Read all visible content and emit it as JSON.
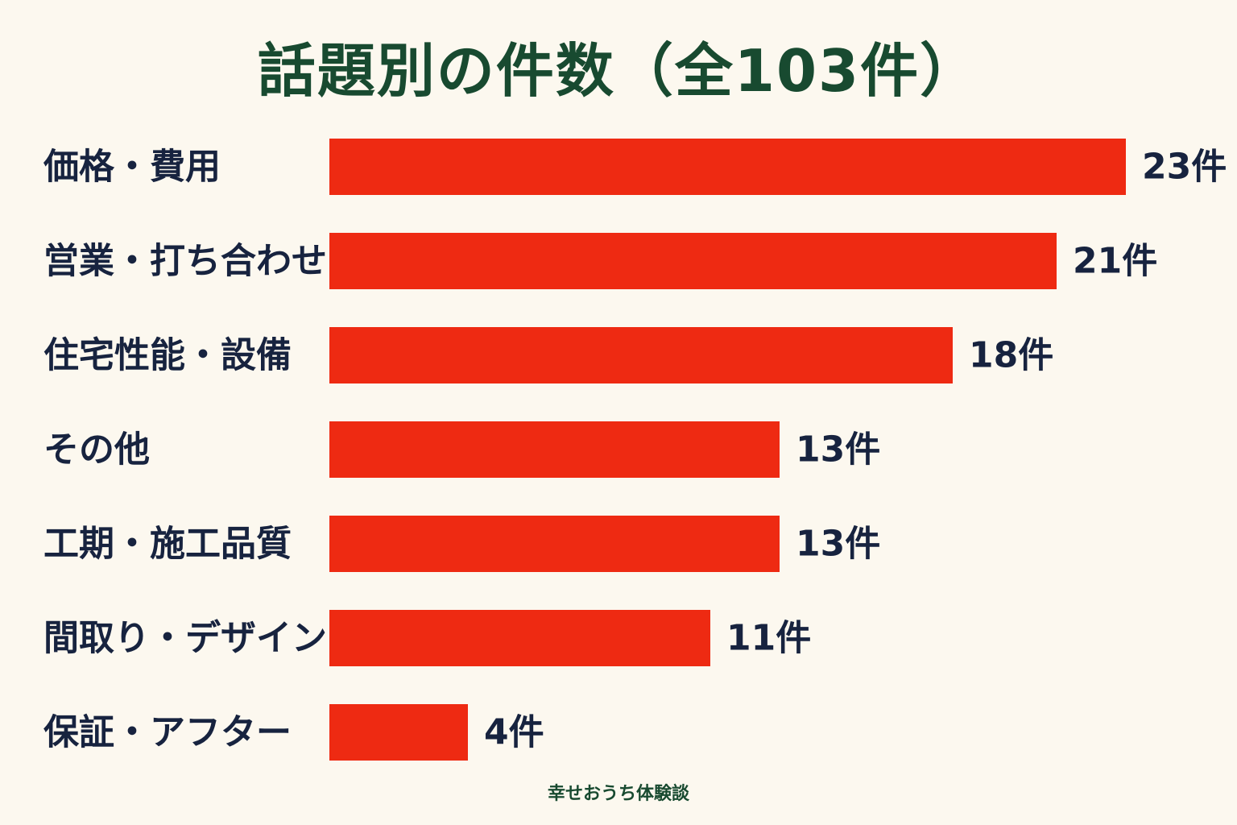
{
  "chart_data": {
    "type": "bar",
    "orientation": "horizontal",
    "title": "話題別の件数（全103件）",
    "categories": [
      "価格・費用",
      "営業・打ち合わせ",
      "住宅性能・設備",
      "その他",
      "工期・施工品質",
      "間取り・デザイン",
      "保証・アフター"
    ],
    "values": [
      23,
      21,
      18,
      13,
      13,
      11,
      4
    ],
    "value_labels": [
      "23件",
      "21件",
      "18件",
      "13件",
      "13件",
      "11件",
      "4件"
    ],
    "xlim": [
      0,
      23
    ],
    "grid": false,
    "legend": "none"
  },
  "footer": {
    "text": "幸せおうち体験談"
  },
  "colors": {
    "background": "#fcf8ef",
    "bar": "#ee2a12",
    "title": "#184a30",
    "label": "#17233f",
    "footer": "#184a30"
  }
}
